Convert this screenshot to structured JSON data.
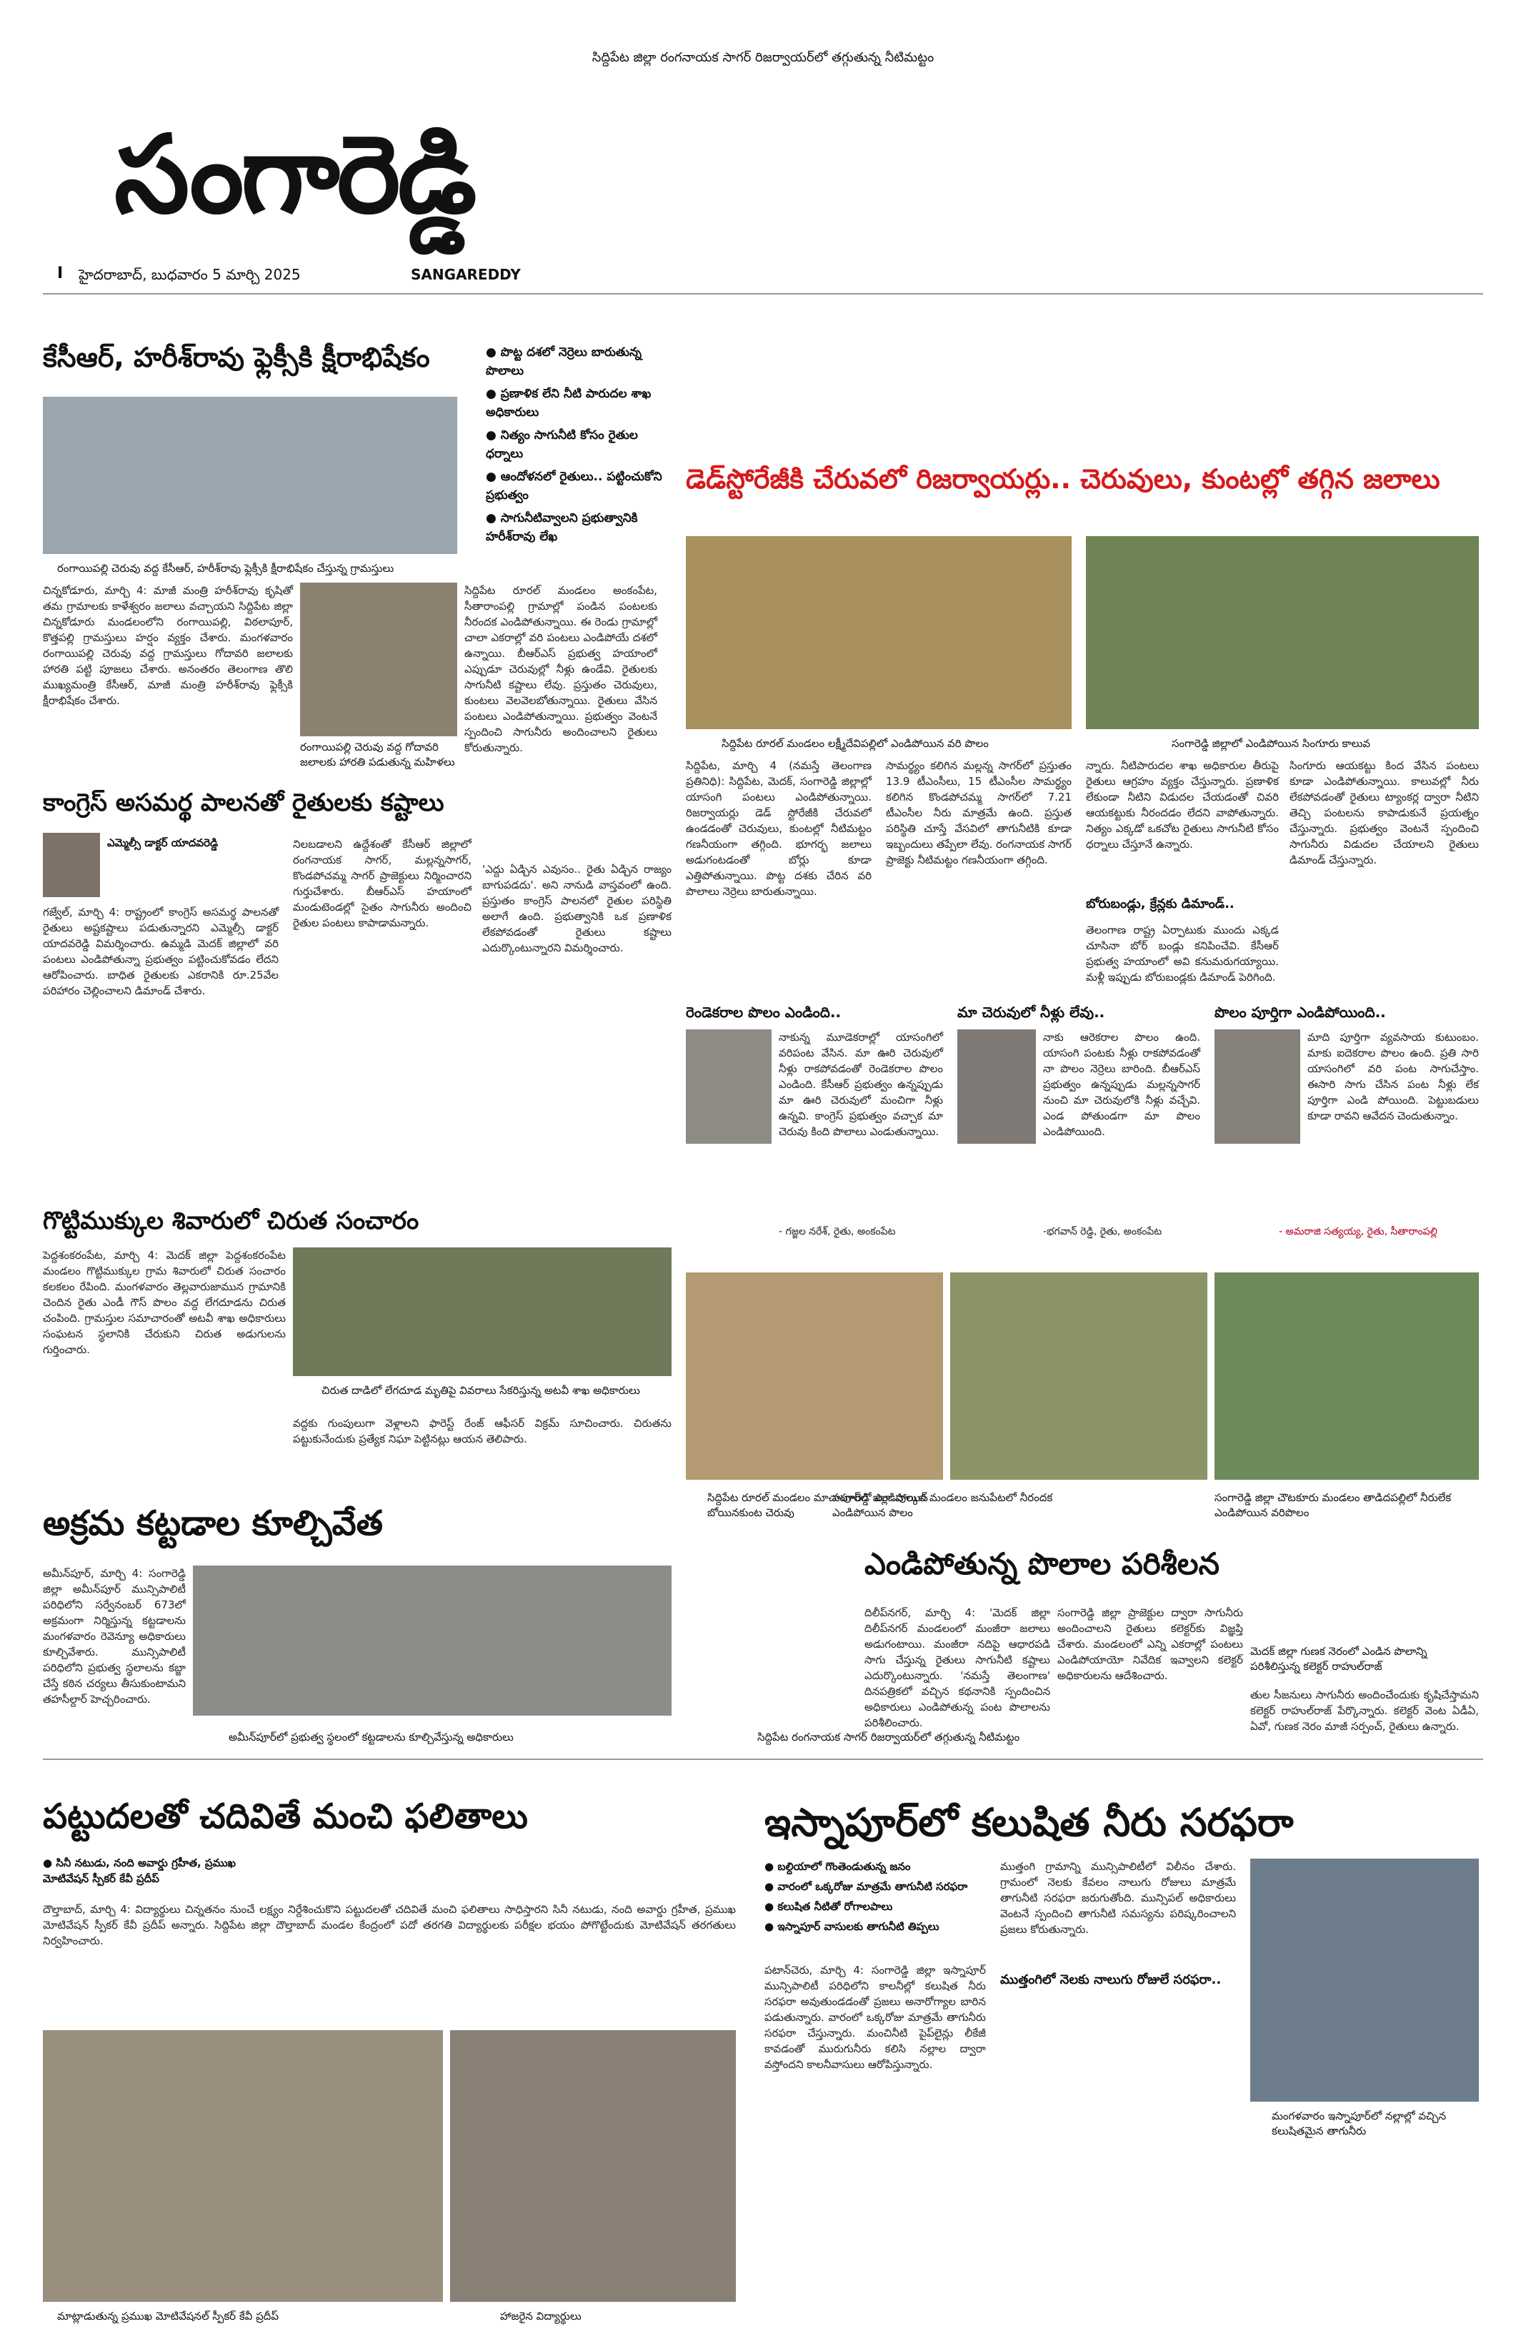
{
  "top_line": "సిద్దిపేట జిల్లా రంగనాయక సాగర్ రిజర్వాయర్‌లో తగ్గుతున్న నీటిమట్టం",
  "masthead": {
    "title": "సంగారెడ్డి",
    "edition_mark": "I",
    "dateline": "హైదరాబాద్, బుధవారం 5 మార్చి 2025",
    "title_en": "SANGAREDDY"
  },
  "story1": {
    "headline": "కేసీఆర్, హరీశ్‌రావు ఫ్లెక్సీకి క్షీరాభిషేకం",
    "caption": "రంగాయిపల్లి చెరువు వద్ద కేసీఆర్, హరీశ్‌రావు ఫ్లెక్సీకి క్షీరాభిషేకం చేస్తున్న గ్రామస్తులు",
    "body1": "చిన్నకోడూరు, మార్చి 4: మాజీ మంత్రి హరీశ్‌రావు కృషితో తమ గ్రామాలకు కాళేశ్వరం జలాలు వచ్చాయని సిద్దిపేట జిల్లా చిన్నకోడూరు మండలంలోని రంగాయిపల్లి, విఠలాపూర్, కొత్తపల్లి గ్రామస్తులు హర్షం వ్యక్తం చేశారు. మంగళవారం రంగాయిపల్లి చెరువు వద్ద గ్రామస్తులు గోదావరి జలాలకు హారతి పట్టి పూజలు చేశారు. అనంతరం తెలంగాణ తొలి ముఖ్యమంత్రి కేసీఆర్, మాజీ మంత్రి హరీశ్‌రావు ఫ్లెక్సీకి క్షీరాభిషేకం చేశారు.",
    "body2": "సిద్దిపేట రూరల్ మండలం అంకంపేట, సీతారాంపల్లి గ్రామాల్లో పండిన పంటలకు నీరందక ఎండిపోతున్నాయి. ఈ రెండు గ్రామాల్లో చాలా ఎకరాల్లో వరి పంటలు ఎండిపోయే దశలో ఉన్నాయి. బీఆర్ఎస్ ప్రభుత్వ హయాంలో ఎప్పుడూ చెరువుల్లో నీళ్లు ఉండేవి. రైతులకు సాగునీటి కష్టాలు లేవు. ప్రస్తుతం చెరువులు, కుంటలు వెలవెలబోతున్నాయి. రైతులు వేసిన పంటలు ఎండిపోతున్నాయి. ప్రభుత్వం వెంటనే స్పందించి సాగునీరు అందించాలని రైతులు కోరుతున్నారు.",
    "caption2": "రంగాయిపల్లి చెరువు వద్ద గోదావరి జలాలకు హారతి పడుతున్న మహిళలు"
  },
  "bullets": [
    "పొట్ట దశలో నెర్రెలు బారుతున్న పొలాలు",
    "ప్రణాళిక లేని నీటి పారుదల శాఖ అధికారులు",
    "నిత్యం సాగునీటి కోసం రైతుల ధర్నాలు",
    "ఆందోళనలో రైతులు.. పట్టించుకోని ప్రభుత్వం",
    "సాగునీటివ్వాలని ప్రభుత్వానికి హరీశ్‌రావు లేఖ"
  ],
  "main_story": {
    "headline": "డెడ్‌స్టోరేజీకి చేరువలో రిజర్వాయర్లు.. చెరువులు, కుంటల్లో తగ్గిన జలాలు",
    "photo1_caption": "సిద్దిపేట రూరల్ మండలం లక్ష్మీదేవిపల్లిలో ఎండిపోయిన వరి పొలం",
    "photo2_caption": "సంగారెడ్డి జిల్లాలో ఎండిపోయిన సింగూరు కాలువ",
    "body_col1": "సిద్దిపేట, మార్చి 4 (నమస్తే తెలంగాణ ప్రతినిధి): సిద్దిపేట, మెదక్, సంగారెడ్డి జిల్లాల్లో యాసంగి పంటలు ఎండిపోతున్నాయి. రిజర్వాయర్లు డెడ్ స్టోరేజీకి చేరువలో ఉండడంతో చెరువులు, కుంటల్లో నీటిమట్టం గణనీయంగా తగ్గింది. భూగర్భ జలాలు అడుగంటడంతో బోర్లు కూడా ఎత్తిపోతున్నాయి. పొట్ట దశకు చేరిన వరి పొలాలు నెర్రెలు బారుతున్నాయి.",
    "body_col2": "సామర్థ్యం కలిగిన మల్లన్న సాగర్‌లో ప్రస్తుతం 13.9 టీఎంసీలు, 15 టీఎంసీల సామర్థ్యం కలిగిన కొండపోచమ్మ సాగర్‌లో 7.21 టీఎంసీల నీరు మాత్రమే ఉంది. ప్రస్తుత పరిస్థితి చూస్తే వేసవిలో తాగునీటికి కూడా ఇబ్బందులు తప్పేలా లేవు. రంగనాయక సాగర్ ప్రాజెక్టు నీటిమట్టం గణనీయంగా తగ్గింది.",
    "body_col3": "న్నారు. నీటిపారుదల శాఖ అధికారుల తీరుపై రైతులు ఆగ్రహం వ్యక్తం చేస్తున్నారు. ప్రణాళిక లేకుండా నీటిని విడుదల చేయడంతో చివరి ఆయకట్టుకు నీరందడం లేదని వాపోతున్నారు. నిత్యం ఎక్కడో ఒకచోట రైతులు సాగునీటి కోసం ధర్నాలు చేస్తూనే ఉన్నారు.",
    "body_col4": "సింగూరు ఆయకట్టు కింద వేసిన పంటలు కూడా ఎండిపోతున్నాయి. కాలువల్లో నీరు లేకపోవడంతో రైతులు ట్యాంకర్ల ద్వారా నీటిని తెచ్చి పంటలను కాపాడుకునే ప్రయత్నం చేస్తున్నారు. ప్రభుత్వం వెంటనే స్పందించి సాగునీరు విడుదల చేయాలని రైతులు డిమాండ్ చేస్తున్నారు.",
    "subhead_borlu": "బోరుబండ్లు, క్రేన్లకు డిమాండ్..",
    "body_borlu": "తెలంగాణ రాష్ట్ర ఏర్పాటుకు ముందు ఎక్కడ చూసినా బోర్ బండ్లు కనిపించేవి. కేసీఆర్ ప్రభుత్వ హయాంలో అవి కనుమరుగయ్యాయి. మళ్లీ ఇప్పుడు బోరుబండ్లకు డిమాండ్ పెరిగింది."
  },
  "congress_story": {
    "headline": "కాంగ్రెస్ అసమర్థ పాలనతో రైతులకు కష్టాలు",
    "byline": "ఎమ్మెల్సీ డాక్టర్ యాదవరెడ్డి",
    "body1": "గజ్వేల్, మార్చి 4: రాష్ట్రంలో కాంగ్రెస్ అసమర్థ పాలనతో రైతులు అష్టకష్టాలు పడుతున్నారని ఎమ్మెల్సీ డాక్టర్ యాదవరెడ్డి విమర్శించారు. ఉమ్మడి మెదక్ జిల్లాలో వరి పంటలు ఎండిపోతున్నా ప్రభుత్వం పట్టించుకోవడం లేదని ఆరోపించారు. బాధిత రైతులకు ఎకరానికి రూ.25వేల పరిహారం చెల్లించాలని డిమాండ్ చేశారు.",
    "body2": "నిలబడాలని ఉద్దేశంతో కేసీఆర్ జిల్లాలో రంగనాయక సాగర్, మల్లన్నసాగర్, కొండపోచమ్మ సాగర్ ప్రాజెక్టులు నిర్మించారని గుర్తుచేశారు. బీఆర్ఎస్ హయాంలో మండుటెండల్లో సైతం సాగునీరు అందించి రైతుల పంటలు కాపాడామన్నారు.",
    "body3": "'ఎద్దు ఏడ్చిన ఎవుసం.. రైతు ఏడ్చిన రాజ్యం బాగుపడదు'. అని నానుడి వాస్తవంలో ఉంది. ప్రస్తుతం కాంగ్రెస్ పాలనలో రైతుల పరిస్థితి అలాగే ఉంది. ప్రభుత్వానికి ఒక ప్రణాళిక లేకపోవడంతో రైతులు కష్టాలు ఎదుర్కొంటున్నారని విమర్శించారు."
  },
  "quotes": [
    {
      "headline": "రెండెకరాల పొలం ఎండింది..",
      "body": "నాకున్న మూడెకరాల్లో యాసంగిలో వరిపంట వేసిన. మా ఊరి చెరువులో నీళ్లు రాకపోవడంతో రెండెకరాల పొలం ఎండింది. కేసీఆర్ ప్రభుత్వం ఉన్నప్పుడు మా ఊరి చెరువులో మంచిగా నీళ్లు ఉన్నవి. కాంగ్రెస్ ప్రభుత్వం వచ్చాక మా చెరువు కింది పొలాలు ఎండుతున్నాయి.",
      "attr": "- గజ్జల నరేశ్, రైతు, అంకంపేట"
    },
    {
      "headline": "మా చెరువులో నీళ్లు లేవు..",
      "body": "నాకు ఆరెకరాల పొలం ఉంది. యాసంగి పంటకు నీళ్లు రాకపోవడంతో నా పొలం నెర్రెలు బారింది. బీఆర్ఎస్ ప్రభుత్వం ఉన్నప్పుడు మల్లన్నసాగర్ నుంచి మా చెరువులోకి నీళ్లు వచ్చేవి. ఎండ పోతుండగా మా పొలం ఎండిపోయింది.",
      "attr": "-భగవాన్ రెడ్డి, రైతు, అంకంపేట"
    },
    {
      "headline": "పొలం పూర్తిగా ఎండిపోయింది..",
      "body": "మాది పూర్తిగా వ్యవసాయ కుటుంబం. మాకు ఐదెకరాల పొలం ఉంది. ప్రతి సారి యాసంగిలో వరి పంట సాగుచేస్తాం. ఈసారి సాగు చేసిన పంట నీళ్లు లేక పూర్తిగా ఎండి పోయింది. పెట్టుబడులు కూడా రావని ఆవేదన చెందుతున్నాం.",
      "attr": "- అమరాజి సత్యయ్య, రైతు, సీతారాంపల్లి"
    }
  ],
  "cheetah_story": {
    "headline": "గొట్టిముక్కుల శివారులో చిరుత సంచారం",
    "body": "పెద్దశంకరంపేట, మార్చి 4: మెదక్ జిల్లా పెద్దశంకరంపేట మండలం గొట్టిముక్కుల గ్రామ శివారులో చిరుత సంచారం కలకలం రేపింది. మంగళవారం తెల్లవారుజామున గ్రామానికి చెందిన రైతు ఎండీ గౌస్ పొలం వద్ద లేగదూడను చిరుత చంపింది. గ్రామస్తుల సమాచారంతో అటవీ శాఖ అధికారులు సంఘటన స్థలానికి చేరుకుని చిరుత అడుగులను గుర్తించారు.",
    "caption": "చిరుత దాడిలో లేగదూడ మృతిపై వివరాలు సేకరిస్తున్న అటవీ శాఖ అధికారులు",
    "body2": "వద్దకు గుంపులుగా వెళ్లాలని ఫారెస్ట్ రేంజ్ ఆఫీసర్ విక్రమ్ సూచించారు. చిరుతను పట్టుకునేందుకు ప్రత్యేక నిఘా పెట్టినట్లు ఆయన తెలిపారు."
  },
  "photo_captions_mid": {
    "p1": "సిద్దిపేట రూరల్ మండలం మాచాపూర్‌లో ఎండిపోయిన బోయినకుంట చెరువు",
    "p2": "సంగారెడ్డి జిల్లా పుల్కల్ మండలం జనుపేటలో నీరందక ఎండిపోయిన పొలం",
    "p3": "సంగారెడ్డి జిల్లా చౌటకూరు మండలం తాడిదపల్లిలో నీరులేక ఎండిపోయిన వరిపొలం"
  },
  "demolition_story": {
    "headline": "అక్రమ కట్టడాల కూల్చివేత",
    "body": "అమీన్‌పూర్, మార్చి 4: సంగారెడ్డి జిల్లా అమీన్‌పూర్ మున్సిపాలిటీ పరిధిలోని సర్వేనంబర్ 673లో అక్రమంగా నిర్మిస్తున్న కట్టడాలను మంగళవారం రెవెన్యూ అధికారులు కూల్చివేశారు. మున్సిపాలిటీ పరిధిలోని ప్రభుత్వ స్థలాలను కబ్జా చేస్తే కఠిన చర్యలు తీసుకుంటామని తహసీల్దార్ హెచ్చరించారు.",
    "caption": "అమీన్‌పూర్‌లో ప్రభుత్వ స్థలంలో కట్టడాలను కూల్చివేస్తున్న అధికారులు"
  },
  "field_visit_story": {
    "headline": "ఎండిపోతున్న పొలాల పరిశీలన",
    "body": "దిలీప్‌నగర్, మార్చి 4: 'మెదక్ జిల్లా దిలీప్‌నగర్ మండలంలో మంజీరా జలాలు అడుగంటాయి. మంజీరా నదిపై ఆధారపడి సాగు చేస్తున్న రైతులు సాగునీటి కష్టాలు ఎదుర్కొంటున్నారు. 'నమస్తే తెలంగాణ' దినపత్రికలో వచ్చిన కథనానికి స్పందించిన అధికారులు ఎండిపోతున్న పంట పొలాలను పరిశీలించారు.",
    "body2": "సంగారెడ్డి జిల్లా ప్రాజెక్టుల ద్వారా సాగునీరు అందించాలని రైతులు కలెక్టర్‌కు విజ్ఞప్తి చేశారు. మండలంలో ఎన్ని ఎకరాల్లో పంటలు ఎండిపోయాయో నివేదిక ఇవ్వాలని కలెక్టర్ అధికారులను ఆదేశించారు.",
    "caption": "మెదక్ జిల్లా గుణక నెరంలో ఎండిన పొలాన్ని పరిశీలిస్తున్న కలెక్టర్ రాహుల్‌రాజ్",
    "body3": "తుల సీజనులు సాగునీరు అందించేందుకు కృషిచేస్తామని కలెక్టర్ రాహుల్‌రాజ్ పేర్కొన్నారు. కలెక్టర్ వెంట ఏడీఏ, ఏవో, గుణక నెరం మాజీ సర్పంచ్, రైతులు ఉన్నారు."
  },
  "mid_caption2": "సిద్దిపేట రంగనాయక సాగర్ రిజర్వాయర్‌లో తగ్గుతున్న నీటిమట్టం",
  "education_story": {
    "headline": "పట్టుదలతో చదివితే మంచి ఫలితాలు",
    "bullets": [
      "సినీ నటుడు, నంది అవార్డు గ్రహీత, ప్రముఖ మోటివేషన్ స్పీకర్ కేవీ ప్రదీప్"
    ],
    "body": "దౌల్తాబాద్, మార్చి 4: విద్యార్థులు చిన్నతనం నుంచే లక్ష్యం నిర్దేశించుకొని పట్టుదలతో చదివితే మంచి ఫలితాలు సాధిస్తారని సినీ నటుడు, నంది అవార్డు గ్రహీత, ప్రముఖ మోటివేషన్ స్పీకర్ కేవీ ప్రదీప్ అన్నారు. సిద్దిపేట జిల్లా దౌల్తాబాద్ మండల కేంద్రంలో పదో తరగతి విద్యార్థులకు పరీక్షల భయం పోగొట్టేందుకు మోటివేషన్ తరగతులు నిర్వహించారు.",
    "caption1": "మాట్లాడుతున్న ప్రముఖ మోటివేషనల్ స్పీకర్ కేవీ ప్రదీప్",
    "caption2": "హాజరైన విద్యార్థులు"
  },
  "water_story": {
    "headline": "ఇస్నాపూర్‌లో కలుషిత నీరు సరఫరా",
    "bullets": [
      "బల్దియాలో గొంతెండుతున్న జనం",
      "వారంలో ఒక్కరోజు మాత్రమే తాగునీటి సరఫరా",
      "కలుషిత నీటితో రోగాలపాలు",
      "ఇస్నాపూర్ వాసులకు తాగునీటి తిప్పలు"
    ],
    "body": "పటాన్‌చెరు, మార్చి 4: సంగారెడ్డి జిల్లా ఇస్నాపూర్ మున్సిపాలిటీ పరిధిలోని కాలనీల్లో కలుషిత నీరు సరఫరా అవుతుండడంతో ప్రజలు అనారోగ్యాల బారిన పడుతున్నారు. వారంలో ఒక్కరోజు మాత్రమే తాగునీరు సరఫరా చేస్తున్నారు. మంచినీటి పైప్‌లైన్లు లీకేజీ కావడంతో మురుగునీరు కలిసి నల్లాల ద్వారా వస్తోందని కాలనీవాసులు ఆరోపిస్తున్నారు.",
    "subhead": "ముత్తంగిలో నెలకు నాలుగు రోజులే సరఫరా..",
    "body2": "ముత్తంగి గ్రామాన్ని మున్సిపాలిటీలో విలీనం చేశారు. గ్రామంలో నెలకు కేవలం నాలుగు రోజులు మాత్రమే తాగునీటి సరఫరా జరుగుతోంది. మున్సిపల్ అధికారులు వెంటనే స్పందించి తాగునీటి సమస్యను పరిష్కరించాలని ప్రజలు కోరుతున్నారు.",
    "caption": "మంగళవారం ఇస్నాపూర్‌లో నల్లాల్లో వచ్చిన కలుషితమైన తాగునీరు"
  }
}
